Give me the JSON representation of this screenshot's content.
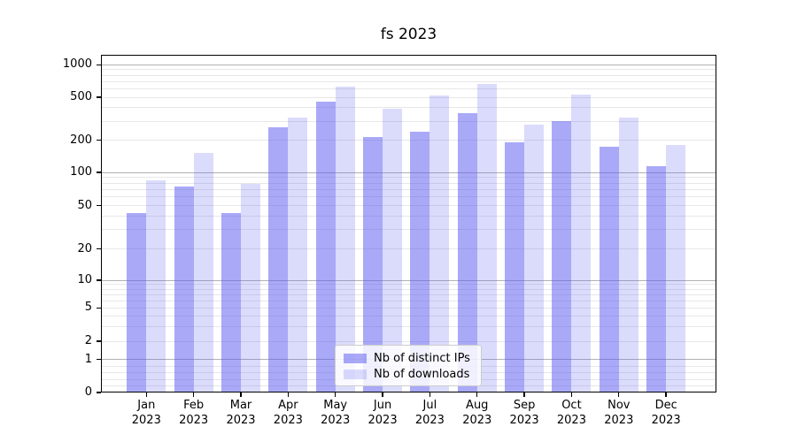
{
  "title": "fs 2023",
  "legend": {
    "items": [
      {
        "label": "Nb of distinct IPs",
        "color": "rgba(83,83,241,0.5)"
      },
      {
        "label": "Nb of downloads",
        "color": "rgba(83,83,241,0.21)"
      }
    ]
  },
  "chart_data": {
    "type": "bar",
    "title": "fs 2023",
    "categories": [
      "Jan 2023",
      "Feb 2023",
      "Mar 2023",
      "Apr 2023",
      "May 2023",
      "Jun 2023",
      "Jul 2023",
      "Aug 2023",
      "Sep 2023",
      "Oct 2023",
      "Nov 2023",
      "Dec 2023"
    ],
    "series": [
      {
        "name": "Nb of distinct IPs",
        "color": "rgba(83,83,241,0.5)",
        "values": [
          43,
          74,
          43,
          263,
          456,
          214,
          238,
          354,
          191,
          300,
          174,
          114
        ]
      },
      {
        "name": "Nb of downloads",
        "color": "rgba(83,83,241,0.21)",
        "values": [
          84,
          153,
          78,
          322,
          626,
          394,
          524,
          658,
          278,
          528,
          322,
          179
        ]
      }
    ],
    "xlabel": "",
    "ylabel": "",
    "yscale": "symlog",
    "y_ticks": [
      0,
      1,
      2,
      5,
      10,
      20,
      50,
      100,
      200,
      500,
      1000
    ],
    "ylim": [
      0,
      1250
    ],
    "grid": "on",
    "legend_position": "lower center"
  }
}
